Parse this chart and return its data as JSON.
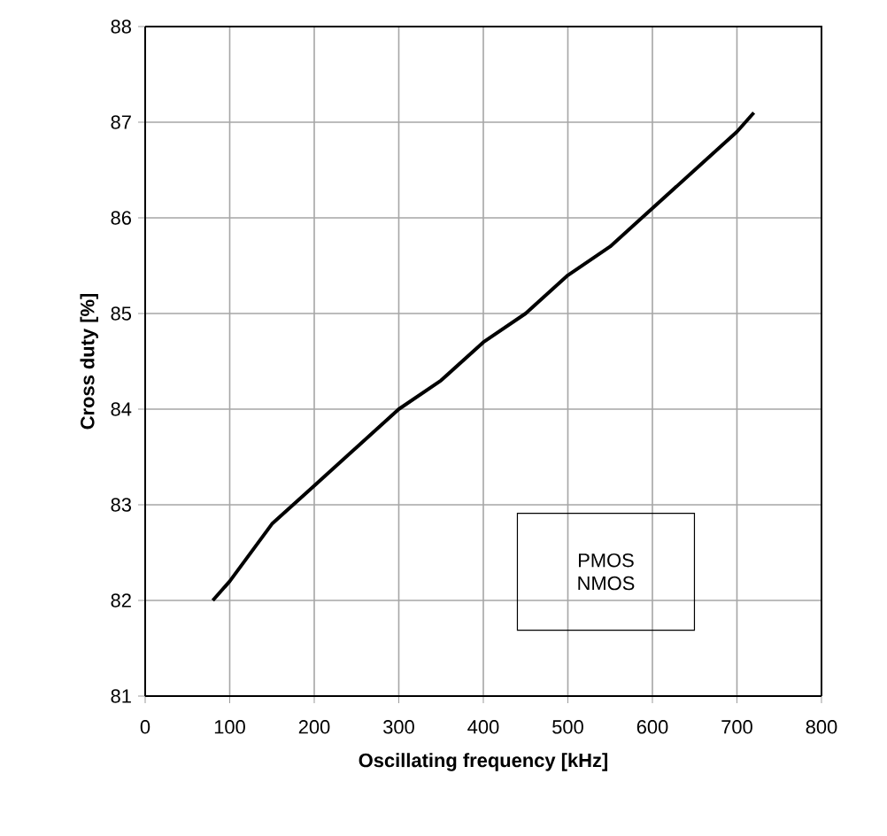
{
  "chart_data": {
    "type": "line",
    "xlabel": "Oscillating frequency [kHz]",
    "ylabel": "Cross duty [%]",
    "x": [
      80,
      100,
      150,
      200,
      250,
      300,
      350,
      400,
      450,
      500,
      550,
      600,
      650,
      700,
      720
    ],
    "series": [
      {
        "color": "#000000",
        "values": [
          82.0,
          82.2,
          82.8,
          83.2,
          83.6,
          84.0,
          84.3,
          84.7,
          85.0,
          85.4,
          85.7,
          86.1,
          86.5,
          86.9,
          87.1
        ]
      }
    ],
    "xlim": [
      0,
      800
    ],
    "ylim": [
      81,
      88
    ],
    "xticks": [
      0,
      100,
      200,
      300,
      400,
      500,
      600,
      700,
      800
    ],
    "yticks": [
      81,
      82,
      83,
      84,
      85,
      86,
      87,
      88
    ],
    "grid": true,
    "marker": "none",
    "line_style": "solid",
    "annotations": [
      "PMOS",
      "NMOS"
    ]
  }
}
